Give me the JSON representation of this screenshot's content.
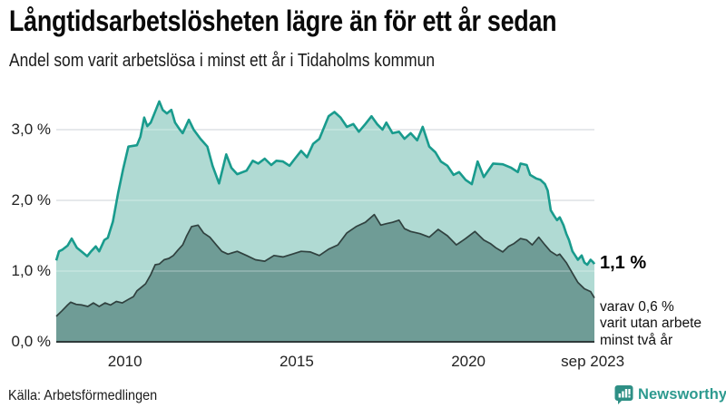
{
  "chart_data": {
    "type": "area",
    "title": "Långtidsarbetslösheten lägre än för ett år sedan",
    "subtitle": "Andel som varit arbetslösa i minst ett år i Tidaholms kommun",
    "x_range": [
      2008.0,
      2023.67
    ],
    "y_range": [
      0,
      3.5
    ],
    "grid": "on",
    "legend": "none",
    "x_ticks": [
      {
        "label": "2010",
        "x": 2010
      },
      {
        "label": "2015",
        "x": 2015
      },
      {
        "label": "2020",
        "x": 2020
      },
      {
        "label": "sep 2023",
        "x": 2023.62
      }
    ],
    "y_ticks": [
      {
        "label": "0,0 %",
        "v": 0
      },
      {
        "label": "1,0 %",
        "v": 1
      },
      {
        "label": "2,0 %",
        "v": 2
      },
      {
        "label": "3,0 %",
        "v": 3
      }
    ],
    "series": [
      {
        "name": "Andel arbetslösa minst ett år",
        "line_color": "#199B8D",
        "fill_color": "#B0DAD3",
        "line_width": 2.6,
        "points": [
          [
            2008.0,
            1.15
          ],
          [
            2008.08,
            1.28
          ],
          [
            2008.17,
            1.3
          ],
          [
            2008.33,
            1.36
          ],
          [
            2008.45,
            1.46
          ],
          [
            2008.6,
            1.33
          ],
          [
            2008.75,
            1.27
          ],
          [
            2008.9,
            1.21
          ],
          [
            2009.0,
            1.27
          ],
          [
            2009.15,
            1.35
          ],
          [
            2009.25,
            1.28
          ],
          [
            2009.4,
            1.44
          ],
          [
            2009.5,
            1.47
          ],
          [
            2009.65,
            1.7
          ],
          [
            2009.8,
            2.1
          ],
          [
            2009.95,
            2.45
          ],
          [
            2010.1,
            2.76
          ],
          [
            2010.35,
            2.78
          ],
          [
            2010.45,
            2.9
          ],
          [
            2010.56,
            3.17
          ],
          [
            2010.65,
            3.05
          ],
          [
            2010.75,
            3.1
          ],
          [
            2010.85,
            3.22
          ],
          [
            2011.0,
            3.4
          ],
          [
            2011.1,
            3.28
          ],
          [
            2011.22,
            3.23
          ],
          [
            2011.35,
            3.28
          ],
          [
            2011.46,
            3.1
          ],
          [
            2011.6,
            3.0
          ],
          [
            2011.68,
            2.95
          ],
          [
            2011.86,
            3.14
          ],
          [
            2012.0,
            3.0
          ],
          [
            2012.2,
            2.87
          ],
          [
            2012.4,
            2.76
          ],
          [
            2012.55,
            2.49
          ],
          [
            2012.74,
            2.24
          ],
          [
            2012.95,
            2.65
          ],
          [
            2013.1,
            2.46
          ],
          [
            2013.27,
            2.37
          ],
          [
            2013.54,
            2.42
          ],
          [
            2013.72,
            2.56
          ],
          [
            2013.88,
            2.52
          ],
          [
            2014.07,
            2.59
          ],
          [
            2014.26,
            2.5
          ],
          [
            2014.41,
            2.56
          ],
          [
            2014.6,
            2.55
          ],
          [
            2014.79,
            2.49
          ],
          [
            2014.95,
            2.59
          ],
          [
            2015.13,
            2.7
          ],
          [
            2015.3,
            2.61
          ],
          [
            2015.48,
            2.8
          ],
          [
            2015.66,
            2.87
          ],
          [
            2015.93,
            3.19
          ],
          [
            2016.1,
            3.25
          ],
          [
            2016.28,
            3.17
          ],
          [
            2016.46,
            3.04
          ],
          [
            2016.65,
            3.08
          ],
          [
            2016.81,
            2.97
          ],
          [
            2017.0,
            3.08
          ],
          [
            2017.18,
            3.19
          ],
          [
            2017.34,
            3.08
          ],
          [
            2017.5,
            3.0
          ],
          [
            2017.61,
            3.1
          ],
          [
            2017.79,
            2.95
          ],
          [
            2017.98,
            2.97
          ],
          [
            2018.14,
            2.87
          ],
          [
            2018.32,
            2.95
          ],
          [
            2018.51,
            2.85
          ],
          [
            2018.67,
            3.04
          ],
          [
            2018.86,
            2.76
          ],
          [
            2019.04,
            2.68
          ],
          [
            2019.2,
            2.55
          ],
          [
            2019.39,
            2.49
          ],
          [
            2019.57,
            2.36
          ],
          [
            2019.73,
            2.4
          ],
          [
            2019.92,
            2.29
          ],
          [
            2020.1,
            2.23
          ],
          [
            2020.27,
            2.55
          ],
          [
            2020.45,
            2.33
          ],
          [
            2020.72,
            2.52
          ],
          [
            2021.0,
            2.51
          ],
          [
            2021.25,
            2.46
          ],
          [
            2021.44,
            2.4
          ],
          [
            2021.52,
            2.52
          ],
          [
            2021.7,
            2.5
          ],
          [
            2021.8,
            2.36
          ],
          [
            2021.97,
            2.31
          ],
          [
            2022.1,
            2.29
          ],
          [
            2022.23,
            2.23
          ],
          [
            2022.31,
            2.14
          ],
          [
            2022.4,
            1.86
          ],
          [
            2022.5,
            1.78
          ],
          [
            2022.58,
            1.72
          ],
          [
            2022.66,
            1.76
          ],
          [
            2022.77,
            1.65
          ],
          [
            2022.85,
            1.53
          ],
          [
            2022.93,
            1.44
          ],
          [
            2023.03,
            1.28
          ],
          [
            2023.11,
            1.22
          ],
          [
            2023.19,
            1.16
          ],
          [
            2023.3,
            1.22
          ],
          [
            2023.38,
            1.12
          ],
          [
            2023.46,
            1.09
          ],
          [
            2023.56,
            1.16
          ],
          [
            2023.64,
            1.12
          ],
          [
            2023.67,
            1.1
          ]
        ]
      },
      {
        "name": "Andel arbetslösa minst två år",
        "line_color": "#30413F",
        "fill_color": "#6F9C96",
        "line_width": 1.7,
        "points": [
          [
            2008.0,
            0.36
          ],
          [
            2008.17,
            0.44
          ],
          [
            2008.33,
            0.52
          ],
          [
            2008.42,
            0.56
          ],
          [
            2008.58,
            0.53
          ],
          [
            2008.75,
            0.52
          ],
          [
            2008.92,
            0.5
          ],
          [
            2009.08,
            0.55
          ],
          [
            2009.25,
            0.5
          ],
          [
            2009.42,
            0.55
          ],
          [
            2009.58,
            0.52
          ],
          [
            2009.75,
            0.57
          ],
          [
            2009.92,
            0.55
          ],
          [
            2010.1,
            0.6
          ],
          [
            2010.25,
            0.64
          ],
          [
            2010.35,
            0.72
          ],
          [
            2010.5,
            0.78
          ],
          [
            2010.6,
            0.82
          ],
          [
            2010.75,
            0.95
          ],
          [
            2010.88,
            1.09
          ],
          [
            2011.0,
            1.1
          ],
          [
            2011.14,
            1.16
          ],
          [
            2011.28,
            1.18
          ],
          [
            2011.41,
            1.22
          ],
          [
            2011.55,
            1.3
          ],
          [
            2011.68,
            1.37
          ],
          [
            2011.8,
            1.5
          ],
          [
            2011.94,
            1.63
          ],
          [
            2012.13,
            1.65
          ],
          [
            2012.29,
            1.54
          ],
          [
            2012.47,
            1.48
          ],
          [
            2012.66,
            1.37
          ],
          [
            2012.82,
            1.28
          ],
          [
            2013.0,
            1.24
          ],
          [
            2013.27,
            1.28
          ],
          [
            2013.54,
            1.22
          ],
          [
            2013.8,
            1.16
          ],
          [
            2014.07,
            1.14
          ],
          [
            2014.34,
            1.22
          ],
          [
            2014.6,
            1.2
          ],
          [
            2014.87,
            1.24
          ],
          [
            2015.13,
            1.28
          ],
          [
            2015.4,
            1.27
          ],
          [
            2015.66,
            1.22
          ],
          [
            2015.93,
            1.31
          ],
          [
            2016.2,
            1.37
          ],
          [
            2016.46,
            1.54
          ],
          [
            2016.73,
            1.63
          ],
          [
            2017.0,
            1.69
          ],
          [
            2017.26,
            1.8
          ],
          [
            2017.45,
            1.65
          ],
          [
            2017.61,
            1.67
          ],
          [
            2017.79,
            1.69
          ],
          [
            2017.98,
            1.72
          ],
          [
            2018.14,
            1.6
          ],
          [
            2018.32,
            1.56
          ],
          [
            2018.59,
            1.53
          ],
          [
            2018.86,
            1.48
          ],
          [
            2019.12,
            1.59
          ],
          [
            2019.39,
            1.5
          ],
          [
            2019.65,
            1.37
          ],
          [
            2019.92,
            1.46
          ],
          [
            2020.19,
            1.56
          ],
          [
            2020.45,
            1.44
          ],
          [
            2020.64,
            1.39
          ],
          [
            2020.8,
            1.33
          ],
          [
            2021.0,
            1.27
          ],
          [
            2021.17,
            1.35
          ],
          [
            2021.33,
            1.39
          ],
          [
            2021.52,
            1.46
          ],
          [
            2021.7,
            1.44
          ],
          [
            2021.86,
            1.37
          ],
          [
            2022.05,
            1.48
          ],
          [
            2022.23,
            1.37
          ],
          [
            2022.39,
            1.28
          ],
          [
            2022.58,
            1.22
          ],
          [
            2022.66,
            1.24
          ],
          [
            2022.85,
            1.12
          ],
          [
            2023.03,
            0.97
          ],
          [
            2023.19,
            0.84
          ],
          [
            2023.38,
            0.75
          ],
          [
            2023.56,
            0.71
          ],
          [
            2023.67,
            0.62
          ]
        ]
      }
    ],
    "annotations": {
      "primary": "1,1 %",
      "secondary_lines": [
        "varav 0,6 %",
        "varit utan arbete",
        "minst två år"
      ]
    },
    "colors": {
      "gridline": "#D5DADD",
      "axis": "#2F3A3A"
    }
  },
  "source": {
    "text": "Källa: Arbetsförmedlingen"
  },
  "logo": {
    "text": "Newsworthy",
    "color": "#2D9A8F",
    "icon": "newsworthy-speech-bubble-bar-chart"
  }
}
